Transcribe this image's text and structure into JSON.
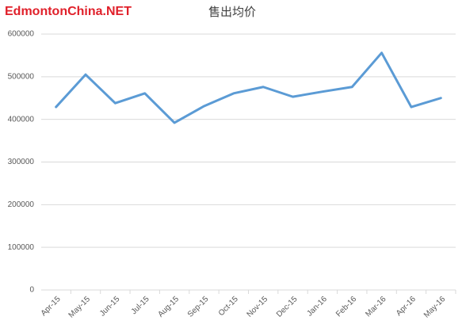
{
  "chart_data": {
    "type": "line",
    "title": "售出均价",
    "watermark": "EdmontonChina.NET",
    "categories": [
      "Apr-15",
      "May-15",
      "Jun-15",
      "Jul-15",
      "Aug-15",
      "Sep-15",
      "Oct-15",
      "Nov-15",
      "Dec-15",
      "Jan-16",
      "Feb-16",
      "Mar-16",
      "Apr-16",
      "May-16"
    ],
    "series": [
      {
        "color": "#5b9bd5",
        "values": [
          429000,
          505000,
          438000,
          461000,
          392000,
          431000,
          461000,
          476000,
          453000,
          465000,
          476000,
          556000,
          429000,
          450000
        ]
      }
    ],
    "ylim": [
      0,
      600000
    ],
    "yticks": [
      0,
      100000,
      200000,
      300000,
      400000,
      500000,
      600000
    ],
    "grid": true
  }
}
